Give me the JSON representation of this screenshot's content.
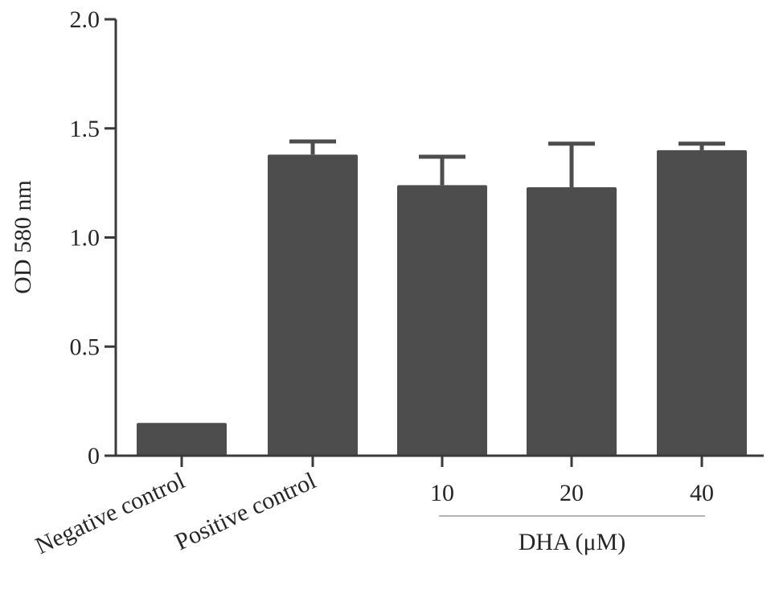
{
  "chart_data": {
    "type": "bar",
    "title": "",
    "ylabel": "OD 580 nm",
    "xlabel": "",
    "ylim": [
      0,
      2.0
    ],
    "yticks": [
      {
        "value": 0,
        "label": "0"
      },
      {
        "value": 0.5,
        "label": "0.5"
      },
      {
        "value": 1.0,
        "label": "1.0"
      },
      {
        "value": 1.5,
        "label": "1.5"
      },
      {
        "value": 2.0,
        "label": "2.0"
      }
    ],
    "categories": [
      "Negative control",
      "Positive control",
      "10",
      "20",
      "40"
    ],
    "values": [
      0.15,
      1.38,
      1.24,
      1.23,
      1.4
    ],
    "error_upper": [
      0.0,
      1.44,
      1.37,
      1.43,
      1.43
    ],
    "bar_color": "#4d4d4d",
    "group_label": "DHA (μM)",
    "group_categories": [
      "10",
      "20",
      "40"
    ],
    "grid": false,
    "legend": "none"
  }
}
